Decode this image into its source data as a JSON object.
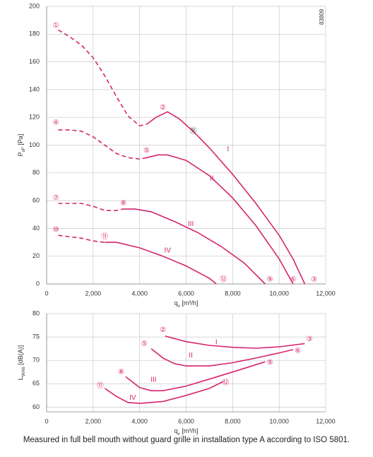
{
  "chart_data": [
    {
      "type": "line",
      "code": "83809",
      "xlabel": {
        "main": "q",
        "sub": "v",
        "unit": "[m³/h]"
      },
      "ylabel": {
        "main": "P",
        "sub": "sF",
        "unit": "[Pa]"
      },
      "xlim": [
        0,
        12000
      ],
      "xticks": [
        0,
        {
          "value": 2000,
          "label": "2,000"
        },
        {
          "value": 4000,
          "label": "4,000"
        },
        {
          "value": 6000,
          "label": "6,000"
        },
        {
          "value": 8000,
          "label": "8,000"
        },
        {
          "value": 10000,
          "label": "10,000"
        },
        {
          "value": 12000,
          "label": "12,000"
        }
      ],
      "ylim": [
        0,
        200
      ],
      "yticks": [
        0,
        20,
        40,
        60,
        80,
        100,
        120,
        140,
        160,
        180,
        200
      ],
      "grid": true,
      "series": [
        {
          "color": "#d6246e",
          "line_style": "dashed",
          "x": [
            500,
            1000,
            1500,
            2000,
            2500,
            3000,
            3500,
            4000,
            4300
          ],
          "values": [
            183,
            178,
            172,
            163,
            150,
            135,
            121,
            114,
            115
          ]
        },
        {
          "color": "#d6246e",
          "line_style": "solid",
          "x": [
            4300,
            4700,
            5200,
            5700,
            6300,
            7000,
            8000,
            9000,
            10000,
            10600,
            11100
          ],
          "values": [
            115,
            120,
            124,
            119,
            110,
            98,
            79,
            58,
            35,
            18,
            0
          ]
        },
        {
          "color": "#d6246e",
          "line_style": "dashed",
          "x": [
            500,
            1000,
            1500,
            2000,
            2500,
            3000,
            3500,
            4000,
            4300
          ],
          "values": [
            111,
            111,
            110,
            106,
            100,
            94,
            91,
            90,
            91
          ]
        },
        {
          "color": "#d6246e",
          "line_style": "solid",
          "x": [
            4300,
            4800,
            5200,
            6000,
            7000,
            8000,
            9000,
            10000,
            10600
          ],
          "values": [
            91,
            93,
            93,
            89,
            78,
            62,
            42,
            18,
            0
          ]
        },
        {
          "color": "#d6246e",
          "line_style": "dashed",
          "x": [
            500,
            1000,
            1500,
            2000,
            2500,
            3000,
            3300
          ],
          "values": [
            58,
            58,
            58,
            56,
            53,
            53,
            54
          ]
        },
        {
          "color": "#d6246e",
          "line_style": "solid",
          "x": [
            3300,
            3800,
            4500,
            5500,
            6500,
            7500,
            8500,
            9400
          ],
          "values": [
            54,
            54,
            52,
            45,
            37,
            27,
            15,
            0
          ]
        },
        {
          "color": "#d6246e",
          "line_style": "dashed",
          "x": [
            500,
            1000,
            1500,
            2000,
            2500
          ],
          "values": [
            35,
            34,
            33,
            31,
            30
          ]
        },
        {
          "color": "#d6246e",
          "line_style": "solid",
          "x": [
            2500,
            3000,
            4000,
            5000,
            6000,
            7000,
            7300
          ],
          "values": [
            30,
            30,
            26,
            20,
            13,
            4,
            0
          ]
        }
      ],
      "annotations": [
        {
          "text": "①",
          "x": 400,
          "y": 186,
          "color": "#d6246e"
        },
        {
          "text": "②",
          "x": 5000,
          "y": 127,
          "color": "#d6246e"
        },
        {
          "text": "⑪",
          "x": 6300,
          "y": 110,
          "color": "#222222"
        },
        {
          "text": "③",
          "x": 11500,
          "y": 3,
          "color": "#d6246e"
        },
        {
          "text": "④",
          "x": 400,
          "y": 116,
          "color": "#d6246e"
        },
        {
          "text": "⑤",
          "x": 4300,
          "y": 96,
          "color": "#d6246e"
        },
        {
          "text": "⑥",
          "x": 10600,
          "y": 3,
          "color": "#d6246e"
        },
        {
          "text": "⑦",
          "x": 400,
          "y": 62,
          "color": "#d6246e"
        },
        {
          "text": "⑧",
          "x": 3300,
          "y": 58,
          "color": "#d6246e"
        },
        {
          "text": "⑨",
          "x": 9600,
          "y": 3,
          "color": "#d6246e"
        },
        {
          "text": "⑩",
          "x": 400,
          "y": 39,
          "color": "#d6246e"
        },
        {
          "text": "⑪",
          "x": 2500,
          "y": 34,
          "color": "#d6246e"
        },
        {
          "text": "⑫",
          "x": 7600,
          "y": 3,
          "color": "#d6246e"
        },
        {
          "text": "I",
          "x": 7800,
          "y": 97,
          "color": "#d6246e"
        },
        {
          "text": "II",
          "x": 7100,
          "y": 76,
          "color": "#d6246e"
        },
        {
          "text": "III",
          "x": 6200,
          "y": 43,
          "color": "#d6246e"
        },
        {
          "text": "IV",
          "x": 5200,
          "y": 24,
          "color": "#d6246e"
        }
      ]
    },
    {
      "type": "line",
      "xlabel": {
        "main": "q",
        "sub": "v",
        "unit": "[m³/h]"
      },
      "ylabel": {
        "main": "L",
        "sub": "WA6",
        "unit": "[dB(A)]"
      },
      "xlim": [
        0,
        12000
      ],
      "xticks": [
        0,
        {
          "value": 2000,
          "label": "2,000"
        },
        {
          "value": 4000,
          "label": "4,000"
        },
        {
          "value": 6000,
          "label": "6,000"
        },
        {
          "value": 8000,
          "label": "8,000"
        },
        {
          "value": 10000,
          "label": "10,000"
        },
        {
          "value": 12000,
          "label": "12,000"
        }
      ],
      "ylim": [
        59,
        80
      ],
      "yticks": [
        60,
        65,
        70,
        75,
        80
      ],
      "grid": true,
      "series": [
        {
          "color": "#d6246e",
          "line_style": "solid",
          "x": [
            5100,
            6000,
            7000,
            8000,
            9000,
            10000,
            11100
          ],
          "values": [
            75.2,
            74,
            73.2,
            72.8,
            72.6,
            72.9,
            73.6
          ]
        },
        {
          "color": "#d6246e",
          "line_style": "solid",
          "x": [
            4500,
            5000,
            5500,
            6000,
            7000,
            8000,
            9000,
            10000,
            10600
          ],
          "values": [
            72.5,
            70.5,
            69.3,
            68.8,
            68.8,
            69.5,
            70.5,
            71.6,
            72.3
          ]
        },
        {
          "color": "#d6246e",
          "line_style": "solid",
          "x": [
            3400,
            4000,
            4500,
            5000,
            6000,
            7000,
            8000,
            9400
          ],
          "values": [
            66.5,
            64.2,
            63.5,
            63.5,
            64.5,
            66,
            67.5,
            69.7
          ]
        },
        {
          "color": "#d6246e",
          "line_style": "solid",
          "x": [
            2500,
            3000,
            3500,
            4000,
            5000,
            6000,
            7000,
            7600
          ],
          "values": [
            64,
            62.3,
            61,
            60.8,
            61.2,
            62.5,
            64,
            65.5
          ]
        }
      ],
      "annotations": [
        {
          "text": "②",
          "x": 5000,
          "y": 76.5,
          "color": "#d6246e"
        },
        {
          "text": "③",
          "x": 11300,
          "y": 74.5,
          "color": "#d6246e"
        },
        {
          "text": "⑤",
          "x": 4200,
          "y": 73.5,
          "color": "#d6246e"
        },
        {
          "text": "⑥",
          "x": 10800,
          "y": 72,
          "color": "#d6246e"
        },
        {
          "text": "⑧",
          "x": 3200,
          "y": 67.5,
          "color": "#d6246e"
        },
        {
          "text": "⑨",
          "x": 9600,
          "y": 69.5,
          "color": "#d6246e"
        },
        {
          "text": "⑪",
          "x": 2300,
          "y": 64.5,
          "color": "#d6246e"
        },
        {
          "text": "⑫",
          "x": 7700,
          "y": 65.2,
          "color": "#d6246e"
        },
        {
          "text": "I",
          "x": 7300,
          "y": 73.8,
          "color": "#d6246e"
        },
        {
          "text": "II",
          "x": 6200,
          "y": 71,
          "color": "#d6246e"
        },
        {
          "text": "III",
          "x": 4600,
          "y": 65.8,
          "color": "#d6246e"
        },
        {
          "text": "IV",
          "x": 3700,
          "y": 62,
          "color": "#d6246e"
        }
      ]
    }
  ],
  "caption": "Measured in full bell mouth without guard grille in installation type A according to ISO 5801."
}
